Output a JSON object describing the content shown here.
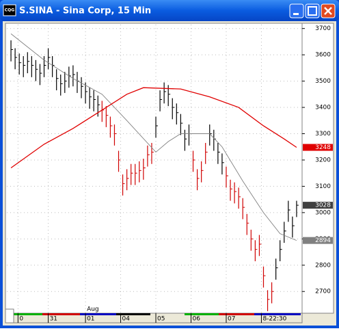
{
  "window": {
    "title": "S.SINA - Sina Corp, 15 Min",
    "app_icon": "CQG"
  },
  "chart_data": {
    "type": "ohlc",
    "ylim": [
      2620,
      3720
    ],
    "yticks": [
      2700,
      2800,
      2900,
      3000,
      3100,
      3200,
      3300,
      3400,
      3500,
      3600,
      3700
    ],
    "xlim": [
      -1,
      70
    ],
    "xticks": [
      {
        "value": 1.7,
        "label": "0"
      },
      {
        "value": 9,
        "label": "31"
      },
      {
        "value": 18,
        "label": "01"
      },
      {
        "value": 26.5,
        "label": "04"
      },
      {
        "value": 35,
        "label": "05"
      },
      {
        "value": 43.5,
        "label": "06"
      },
      {
        "value": 52,
        "label": "07"
      },
      {
        "value": 60.5,
        "label": "8-22:30"
      }
    ],
    "x_month_label": {
      "value": 18,
      "label": "Aug"
    },
    "grid": true,
    "bars": {
      "close": [
        3620,
        3590,
        3570,
        3560,
        3575,
        3560,
        3545,
        3530,
        3560,
        3590,
        3560,
        3510,
        3490,
        3500,
        3520,
        3525,
        3500,
        3480,
        3460,
        3440,
        3430,
        3410,
        3390,
        3370,
        3330,
        3300,
        3200,
        3110,
        3130,
        3150,
        3150,
        3160,
        3170,
        3220,
        3230,
        3330,
        3430,
        3460,
        3450,
        3400,
        3380,
        3340,
        3280,
        3300,
        3200,
        3130,
        3160,
        3230,
        3300,
        3280,
        3230,
        3190,
        3140,
        3090,
        3080,
        3060,
        3020,
        2960,
        2900,
        2860,
        2880,
        2760,
        2670,
        2700,
        2790,
        2860,
        2930,
        3010,
        2950,
        3028
      ],
      "high": [
        3655,
        3625,
        3605,
        3595,
        3610,
        3595,
        3580,
        3565,
        3595,
        3625,
        3595,
        3545,
        3525,
        3535,
        3555,
        3560,
        3535,
        3515,
        3495,
        3475,
        3465,
        3445,
        3425,
        3405,
        3365,
        3335,
        3235,
        3145,
        3165,
        3185,
        3185,
        3195,
        3205,
        3255,
        3265,
        3365,
        3465,
        3495,
        3485,
        3435,
        3415,
        3375,
        3315,
        3335,
        3235,
        3165,
        3195,
        3265,
        3335,
        3315,
        3265,
        3225,
        3175,
        3125,
        3115,
        3095,
        3055,
        2995,
        2935,
        2895,
        2915,
        2795,
        2705,
        2735,
        2825,
        2895,
        2965,
        3045,
        2985,
        3045
      ],
      "low": [
        3575,
        3545,
        3525,
        3515,
        3530,
        3515,
        3500,
        3485,
        3515,
        3545,
        3515,
        3465,
        3445,
        3455,
        3475,
        3480,
        3455,
        3435,
        3415,
        3395,
        3385,
        3365,
        3345,
        3325,
        3285,
        3255,
        3155,
        3065,
        3085,
        3105,
        3105,
        3115,
        3125,
        3175,
        3185,
        3285,
        3385,
        3415,
        3405,
        3355,
        3335,
        3295,
        3235,
        3255,
        3155,
        3085,
        3115,
        3185,
        3255,
        3235,
        3185,
        3145,
        3095,
        3045,
        3035,
        3015,
        2975,
        2915,
        2855,
        2815,
        2835,
        2715,
        2625,
        2655,
        2745,
        2815,
        2885,
        2965,
        2905,
        2983
      ],
      "colors": [
        "#000",
        "#000",
        "#000",
        "#000",
        "#000",
        "#000",
        "#000",
        "#000",
        "#000",
        "#000",
        "#000",
        "#000",
        "#000",
        "#000",
        "#000",
        "#000",
        "#000",
        "#000",
        "#000",
        "#000",
        "#000",
        "#000",
        "#d00000",
        "#d00000",
        "#d00000",
        "#d00000",
        "#d00000",
        "#d00000",
        "#d00000",
        "#d00000",
        "#d00000",
        "#d00000",
        "#d00000",
        "#d00000",
        "#d00000",
        "#000",
        "#000",
        "#000",
        "#000",
        "#000",
        "#000",
        "#000",
        "#000",
        "#000",
        "#d00000",
        "#d00000",
        "#d00000",
        "#d00000",
        "#000",
        "#000",
        "#000",
        "#000",
        "#d00000",
        "#d00000",
        "#d00000",
        "#d00000",
        "#d00000",
        "#d00000",
        "#d00000",
        "#d00000",
        "#d00000",
        "#d00000",
        "#d00000",
        "#d00000",
        "#000",
        "#000",
        "#000",
        "#000",
        "#000",
        "#000"
      ]
    },
    "lines": [
      {
        "color": "#808080",
        "label_bg": "#808080",
        "x": [
          0,
          8,
          15,
          22,
          28,
          35,
          38,
          41,
          48,
          51,
          56,
          61,
          65,
          69
        ],
        "values": [
          3680,
          3580,
          3510,
          3450,
          3350,
          3230,
          3270,
          3300,
          3300,
          3250,
          3120,
          3000,
          2920,
          2894
        ]
      },
      {
        "color": "#e00000",
        "label_bg": "#e00000",
        "x": [
          0,
          8,
          15,
          22,
          28,
          32,
          41,
          48,
          55,
          61,
          66,
          69
        ],
        "values": [
          3170,
          3260,
          3320,
          3390,
          3450,
          3475,
          3470,
          3440,
          3400,
          3330,
          3280,
          3248
        ]
      }
    ],
    "last_label_bg": "#404040"
  }
}
